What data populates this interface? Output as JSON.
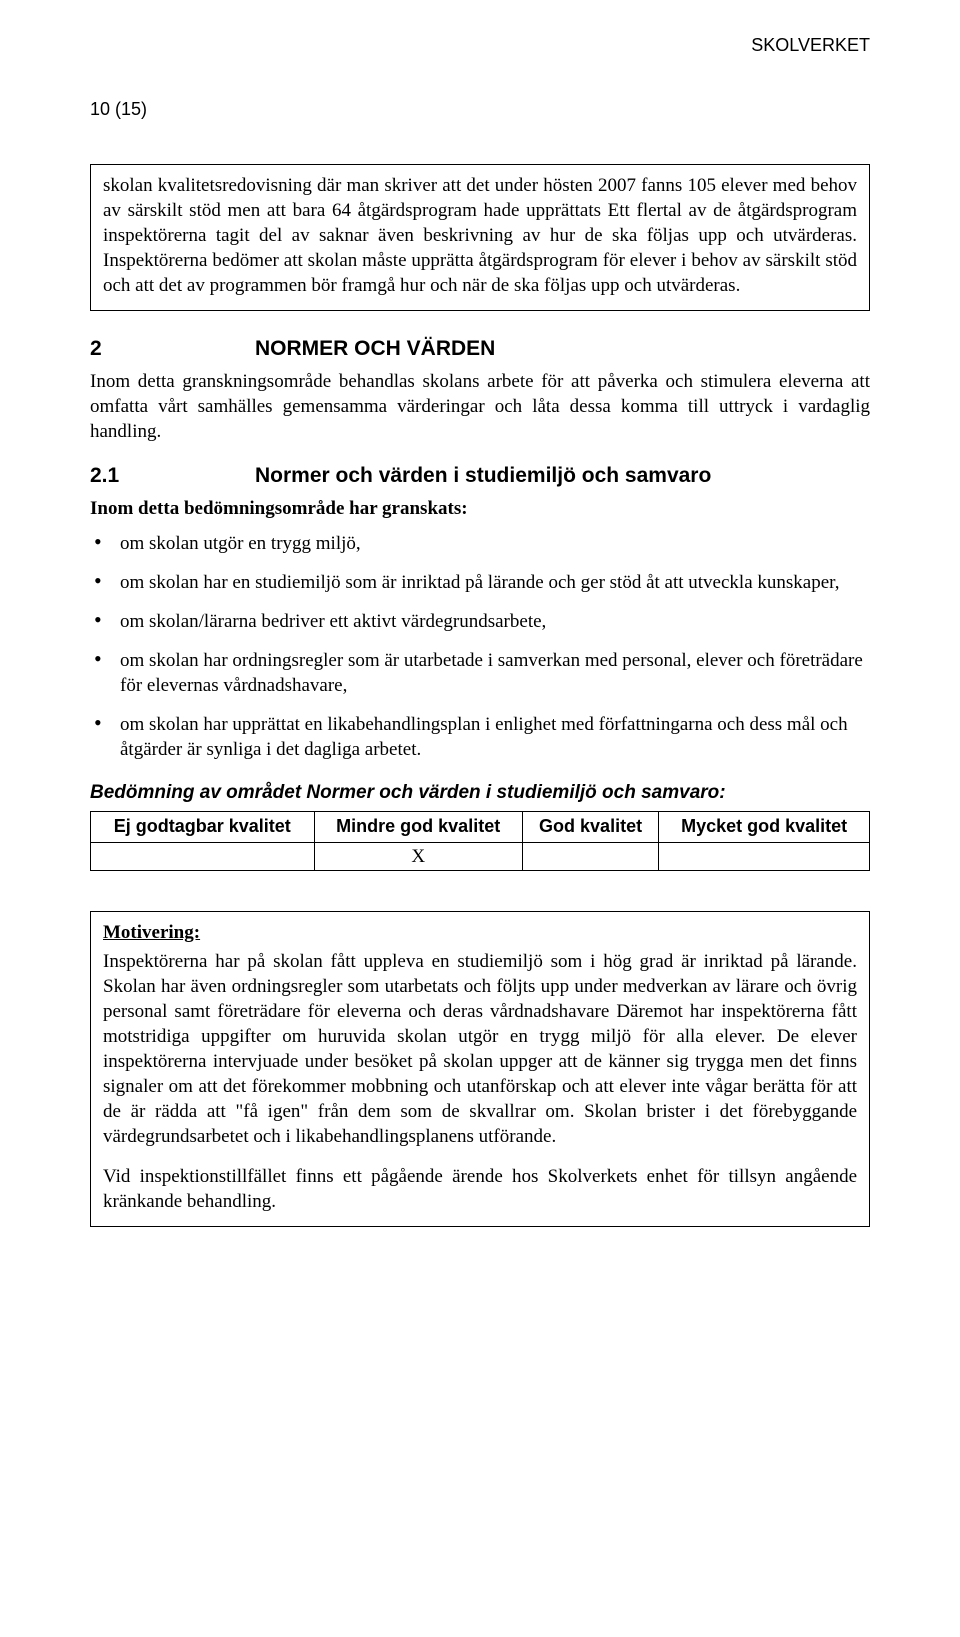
{
  "header": {
    "org": "SKOLVERKET",
    "page": "10 (15)"
  },
  "box1": {
    "text": "skolan kvalitetsredovisning där man skriver att det under hösten 2007 fanns 105 elever med behov av särskilt stöd men att bara 64 åtgärdsprogram hade upprättats Ett flertal av de åtgärdsprogram inspektörerna tagit del av saknar även beskrivning av hur de ska följas upp och utvärderas. Inspektörerna bedömer att skolan måste upprätta åtgärdsprogram för elever i behov av särskilt stöd och att det av programmen bör framgå hur och när de ska följas upp och utvärderas."
  },
  "section2": {
    "num": "2",
    "title": "NORMER OCH VÄRDEN",
    "intro": "Inom detta granskningsområde behandlas skolans arbete för att påverka och stimulera eleverna att omfatta vårt samhälles gemensamma värderingar och låta dessa komma till uttryck i vardaglig handling."
  },
  "section21": {
    "num": "2.1",
    "title": "Normer och värden i studiemiljö och samvaro",
    "listHeading": "Inom detta bedömningsområde har granskats:",
    "items": [
      "om skolan utgör en trygg miljö,",
      "om skolan har en studiemiljö som är inriktad på lärande och ger stöd åt att utveckla kunskaper,",
      "om skolan/lärarna bedriver ett aktivt värdegrundsarbete,",
      "om skolan har ordningsregler som är utarbetade i samverkan med personal, elever och företrädare för elevernas vårdnadshavare,",
      "om skolan har upprättat en likabehandlingsplan i enlighet med författningarna och dess mål och åtgärder är synliga i det dagliga arbetet."
    ]
  },
  "assessment": {
    "title": "Bedömning av området Normer och värden i studiemiljö och samvaro:",
    "columns": [
      "Ej godtagbar kvalitet",
      "Mindre god kvalitet",
      "God kvalitet",
      "Mycket god kvalitet"
    ],
    "mark": "X",
    "mark_index": 1
  },
  "motivation": {
    "label": "Motivering:",
    "p1": "Inspektörerna har på skolan fått uppleva en studiemiljö som i hög grad är inriktad på lärande. Skolan har även ordningsregler som utarbetats och följts upp under medverkan av lärare och övrig personal samt företrädare för eleverna och deras vårdnadshavare Däremot har inspektörerna fått motstridiga uppgifter om huruvida skolan utgör en trygg miljö för alla elever. De elever inspektörerna intervjuade under besöket på skolan uppger att de känner sig trygga men det finns signaler om att det förekommer mobbning och utanförskap och att elever inte vågar berätta för att de är rädda att \"få igen\" från dem som de skvallrar om. Skolan brister i det förebyggande värdegrundsarbetet och i likabehandlingsplanens utförande.",
    "p2": "Vid inspektionstillfället finns ett pågående ärende hos Skolverkets enhet för tillsyn angående kränkande behandling."
  }
}
